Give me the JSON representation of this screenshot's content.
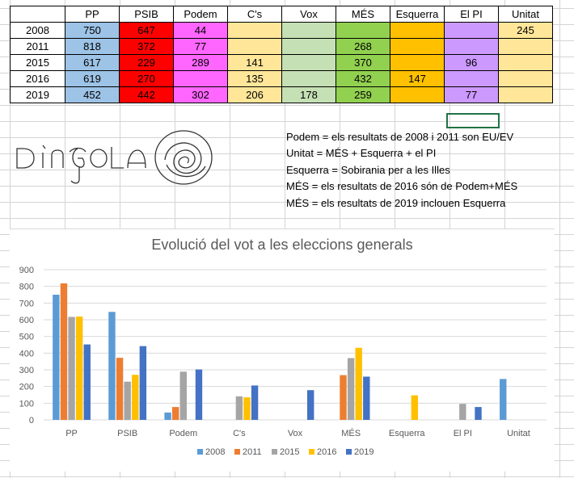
{
  "table": {
    "headers": [
      "PP",
      "PSIB",
      "Podem",
      "C's",
      "Vox",
      "MÉS",
      "Esquerra",
      "El PI",
      "Unitat"
    ],
    "column_colors": [
      "#9dc3e6",
      "#ff0000",
      "#ff66ff",
      "#ffe699",
      "#c5e0b4",
      "#92d050",
      "#ffc000",
      "#cc99ff",
      "#ffe699"
    ],
    "rows": [
      {
        "year": "2008",
        "values": [
          "750",
          "647",
          "44",
          "",
          "",
          "",
          "",
          "",
          "245"
        ]
      },
      {
        "year": "2011",
        "values": [
          "818",
          "372",
          "77",
          "",
          "",
          "268",
          "",
          "",
          ""
        ]
      },
      {
        "year": "2015",
        "values": [
          "617",
          "229",
          "289",
          "141",
          "",
          "370",
          "",
          "96",
          ""
        ]
      },
      {
        "year": "2016",
        "values": [
          "619",
          "270",
          "",
          "135",
          "",
          "432",
          "147",
          "",
          ""
        ]
      },
      {
        "year": "2019",
        "values": [
          "452",
          "442",
          "302",
          "206",
          "178",
          "259",
          "",
          "77",
          ""
        ]
      }
    ]
  },
  "notes": [
    "Podem = els resultats de 2008 i 2011 son EU/EV",
    "Unitat = MÉS + Esquerra + el PI",
    "Esquerra = Sobirania per a les Illes",
    "MÉS = els resultats de 2016 són de Podem+MÉS",
    "MÉS = els resultats de 2019 inclouen Esquerra"
  ],
  "logo": {
    "text": "DÍNGOLA",
    "icon": "swirl-circle-icon"
  },
  "chart_data": {
    "type": "bar",
    "title": "Evolució del vot a les eleccions generals",
    "categories": [
      "PP",
      "PSIB",
      "Podem",
      "C's",
      "Vox",
      "MÉS",
      "Esquerra",
      "El PI",
      "Unitat"
    ],
    "series": [
      {
        "name": "2008",
        "color": "#5b9bd5",
        "values": [
          750,
          647,
          44,
          null,
          null,
          null,
          null,
          null,
          245
        ]
      },
      {
        "name": "2011",
        "color": "#ed7d31",
        "values": [
          818,
          372,
          77,
          null,
          null,
          268,
          null,
          null,
          null
        ]
      },
      {
        "name": "2015",
        "color": "#a5a5a5",
        "values": [
          617,
          229,
          289,
          141,
          null,
          370,
          null,
          96,
          null
        ]
      },
      {
        "name": "2016",
        "color": "#ffc000",
        "values": [
          619,
          270,
          null,
          135,
          null,
          432,
          147,
          null,
          null
        ]
      },
      {
        "name": "2019",
        "color": "#4472c4",
        "values": [
          452,
          442,
          302,
          206,
          178,
          259,
          null,
          77,
          null
        ]
      }
    ],
    "ylim": [
      0,
      900
    ],
    "yticks": [
      0,
      100,
      200,
      300,
      400,
      500,
      600,
      700,
      800,
      900
    ],
    "grid": true,
    "legend": "bottom"
  }
}
